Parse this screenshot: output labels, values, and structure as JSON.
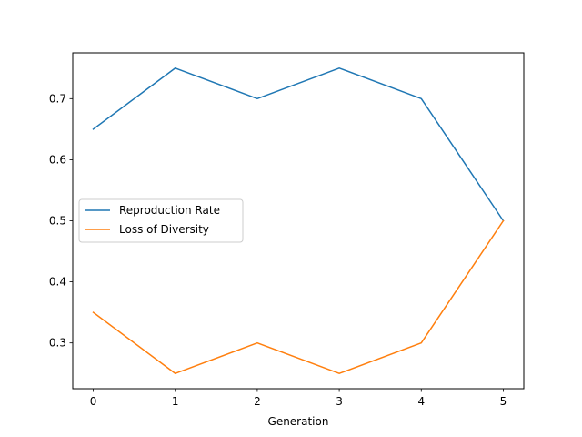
{
  "chart_data": {
    "type": "line",
    "title": "",
    "xlabel": "Generation",
    "ylabel": "",
    "x": [
      0,
      1,
      2,
      3,
      4,
      5
    ],
    "x_ticks": [
      0,
      1,
      2,
      3,
      4,
      5
    ],
    "y_ticks": [
      0.3,
      0.4,
      0.5,
      0.6,
      0.7
    ],
    "xlim": [
      -0.25,
      5.25
    ],
    "ylim": [
      0.225,
      0.775
    ],
    "grid": false,
    "legend_position": "center-left",
    "series": [
      {
        "name": "Reproduction Rate",
        "color": "#1f77b4",
        "values": [
          0.65,
          0.75,
          0.7,
          0.75,
          0.7,
          0.5
        ]
      },
      {
        "name": "Loss of Diversity",
        "color": "#ff7f0e",
        "values": [
          0.35,
          0.25,
          0.3,
          0.25,
          0.3,
          0.5
        ]
      }
    ]
  }
}
